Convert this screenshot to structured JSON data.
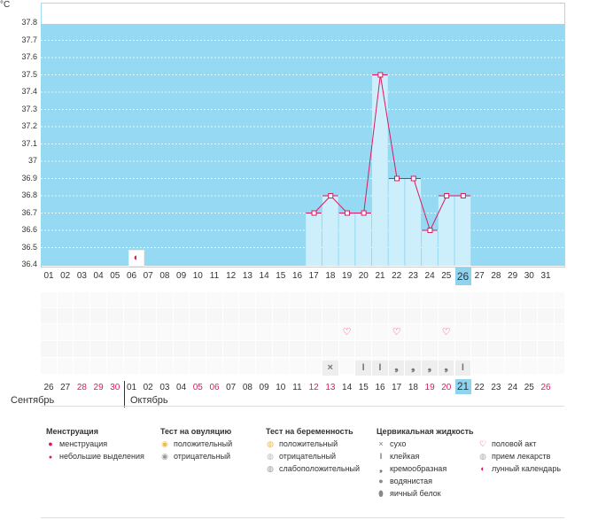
{
  "unit": "°C",
  "y_ticks": [
    "37.8",
    "37.7",
    "37.6",
    "37.5",
    "37.4",
    "37.3",
    "37.2",
    "37.1",
    "37",
    "36.9",
    "36.8",
    "36.7",
    "36.6",
    "36.5",
    "36.4"
  ],
  "top_days": [
    "01",
    "02",
    "03",
    "04",
    "05",
    "06",
    "07",
    "08",
    "09",
    "10",
    "11",
    "12",
    "13",
    "14",
    "15",
    "16",
    "17",
    "18",
    "19",
    "20",
    "21",
    "22",
    "23",
    "24",
    "25",
    "26",
    "27",
    "28",
    "29",
    "30",
    "31"
  ],
  "bottom_days": [
    "26",
    "27",
    "28",
    "29",
    "30",
    "01",
    "02",
    "03",
    "04",
    "05",
    "06",
    "07",
    "08",
    "09",
    "10",
    "11",
    "12",
    "13",
    "14",
    "15",
    "16",
    "17",
    "18",
    "19",
    "20",
    "21",
    "22",
    "23",
    "24",
    "25",
    "26"
  ],
  "bottom_red": [
    2,
    3,
    4,
    9,
    10,
    16,
    17,
    23,
    24,
    30
  ],
  "top_selected": 25,
  "bottom_selected": 25,
  "months": {
    "left": "Сентябрь",
    "right": "Октябрь"
  },
  "chart_data": {
    "type": "line",
    "ylim": [
      36.4,
      37.8
    ],
    "x": [
      17,
      18,
      19,
      20,
      21,
      22,
      23,
      24,
      25,
      26
    ],
    "values": [
      36.7,
      36.8,
      36.7,
      36.7,
      37.5,
      36.9,
      36.9,
      36.6,
      36.8,
      36.8
    ],
    "colors": {
      "line": "#d81b60",
      "bar": "#cdeefb",
      "bg": "#95d9f3"
    }
  },
  "moon_day": 6,
  "heart_days": [
    19,
    22,
    25
  ],
  "cervical_marks": [
    {
      "day": 18,
      "icon": "dry-icon",
      "glyph": "×"
    },
    {
      "day": 20,
      "icon": "sticky-icon",
      "glyph": "I"
    },
    {
      "day": 21,
      "icon": "sticky-icon",
      "glyph": "I"
    },
    {
      "day": 22,
      "icon": "creamy-icon",
      "glyph": "❟"
    },
    {
      "day": 23,
      "icon": "creamy-icon",
      "glyph": "❟"
    },
    {
      "day": 24,
      "icon": "creamy-icon",
      "glyph": "❟"
    },
    {
      "day": 25,
      "icon": "creamy-icon",
      "glyph": "❟"
    },
    {
      "day": 26,
      "icon": "sticky-icon",
      "glyph": "I"
    }
  ],
  "legend": {
    "menstruation": {
      "title": "Менструация",
      "items": [
        "менструация",
        "небольшие выделения"
      ]
    },
    "ovulation": {
      "title": "Тест на овуляцию",
      "items": [
        "положительный",
        "отрицательный"
      ]
    },
    "pregnancy": {
      "title": "Тест на беременность",
      "items": [
        "положительный",
        "отрицательный",
        "слабоположительный"
      ]
    },
    "cervical": {
      "title": "Цервикальная жидкость",
      "items": [
        "сухо",
        "клейкая",
        "кремообразная",
        "водянистая",
        "яичный белок"
      ]
    },
    "other": {
      "items": [
        "половой акт",
        "прием лекарств",
        "лунный календарь"
      ]
    }
  }
}
